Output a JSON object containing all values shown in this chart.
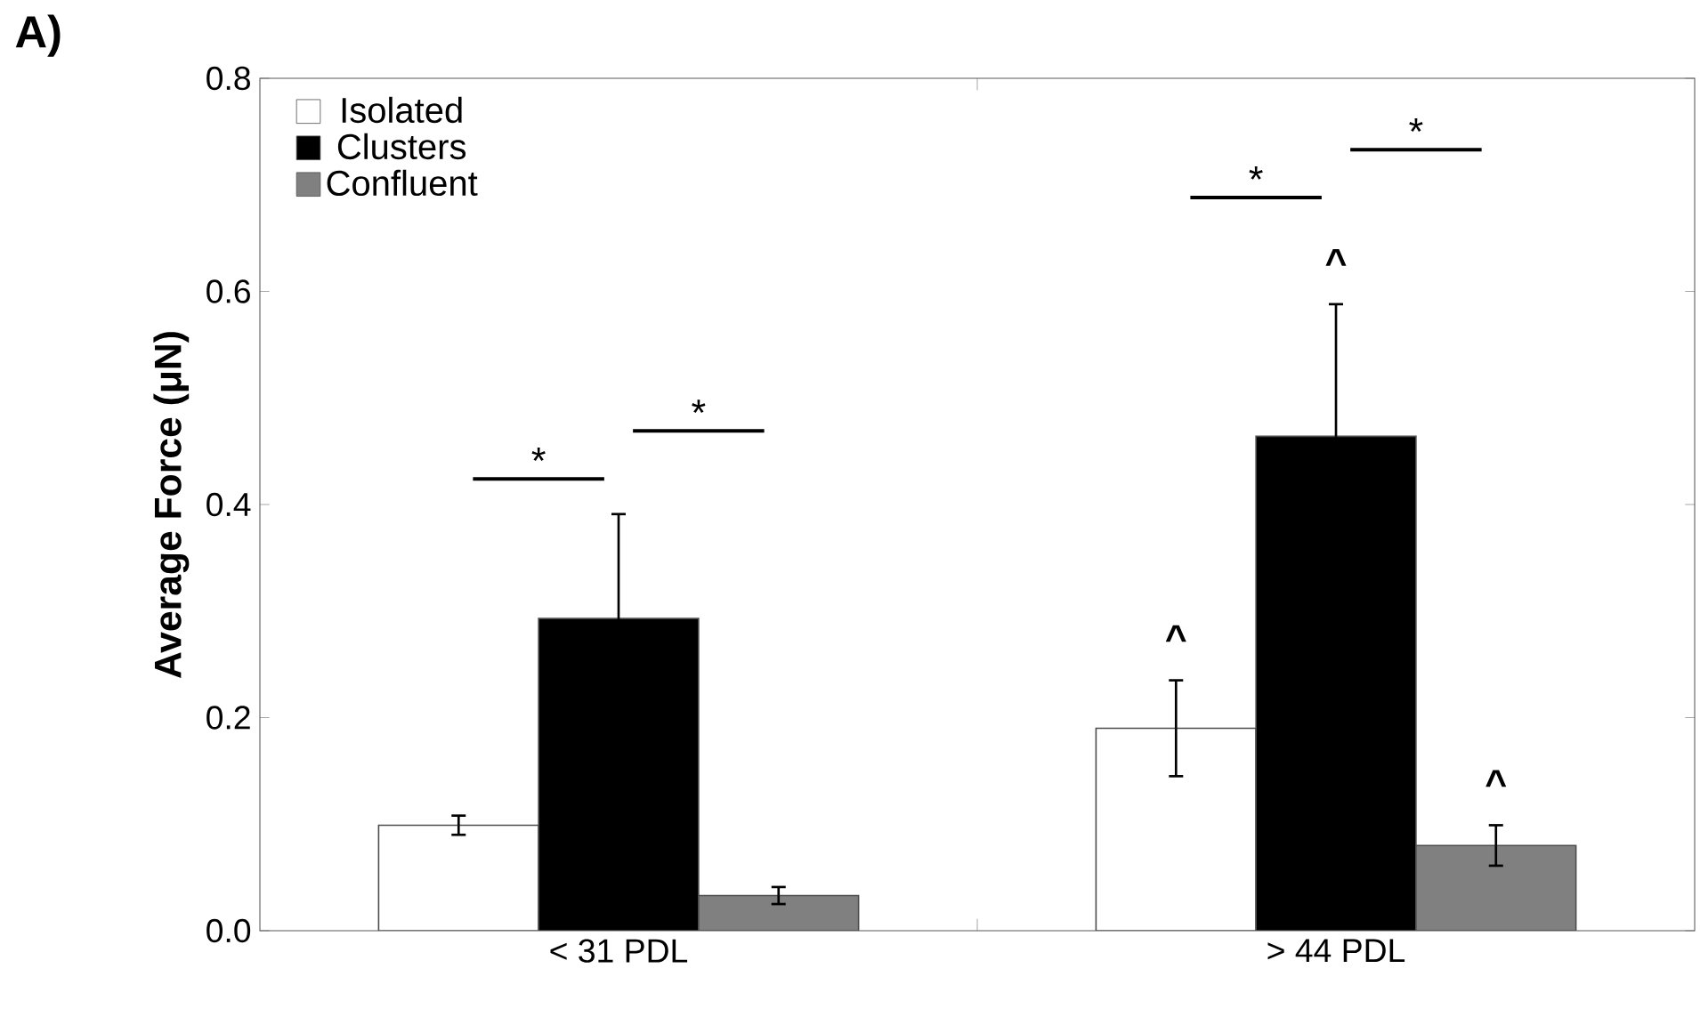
{
  "chart_data": {
    "type": "bar",
    "ylabel": "Average Force (μN)",
    "categories": [
      "< 31 PDL",
      "> 44 PDL"
    ],
    "series": [
      {
        "name": "Isolated",
        "color": "#ffffff",
        "values": [
          0.099,
          0.19
        ],
        "errors": [
          0.009,
          0.045
        ]
      },
      {
        "name": "Clusters",
        "color": "#000000",
        "values": [
          0.293,
          0.464
        ],
        "errors": [
          0.098,
          0.124
        ]
      },
      {
        "name": "Confluent",
        "color": "#808080",
        "values": [
          0.033,
          0.08
        ],
        "errors": [
          0.008,
          0.019
        ]
      }
    ],
    "ylim": [
      0,
      0.8
    ],
    "yticks": [
      {
        "value": 0,
        "label": "0.0"
      },
      {
        "value": 0.2,
        "label": "0.2"
      },
      {
        "value": 0.4,
        "label": "0.4"
      },
      {
        "value": 0.6,
        "label": "0.6"
      },
      {
        "value": 0.8,
        "label": "0.8"
      }
    ],
    "legend": "top left",
    "grid": false,
    "annotations": [
      "A)",
      "*",
      "*",
      "*",
      "*",
      "^",
      "^",
      "^"
    ]
  }
}
